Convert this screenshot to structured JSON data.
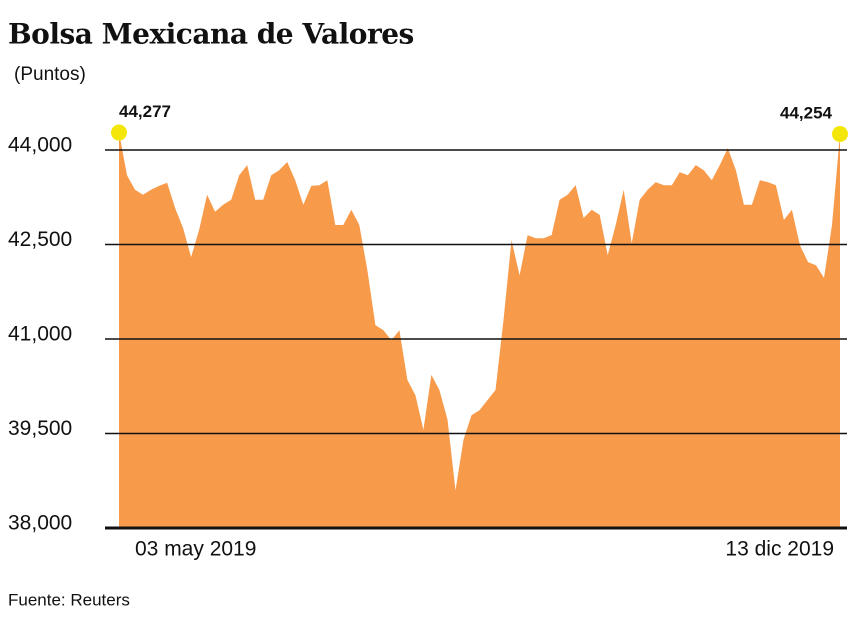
{
  "chart_data": {
    "type": "area",
    "title": "Bolsa Mexicana de Valores",
    "subtitle": "(Puntos)",
    "source": "Fuente: Reuters",
    "color": "#f79a4a",
    "marker_color": "#f5e60a",
    "grid": true,
    "categories": [
      "03 may 2019",
      null,
      null,
      null,
      null,
      null,
      null,
      null,
      null,
      null,
      null,
      null,
      null,
      null,
      null,
      null,
      null,
      null,
      null,
      null,
      null,
      null,
      null,
      null,
      null,
      null,
      null,
      null,
      null,
      null,
      null,
      null,
      null,
      null,
      null,
      null,
      null,
      null,
      null,
      null,
      null,
      null,
      null,
      null,
      null,
      null,
      null,
      null,
      null,
      null,
      null,
      null,
      null,
      null,
      null,
      null,
      null,
      null,
      null,
      null,
      null,
      null,
      null,
      null,
      null,
      null,
      null,
      null,
      null,
      null,
      null,
      null,
      null,
      null,
      null,
      null,
      null,
      null,
      null,
      null,
      null,
      null,
      null,
      null,
      null,
      null,
      null,
      null,
      null,
      null,
      "13 dic 2019"
    ],
    "values": [
      44277,
      43600,
      43370,
      43290,
      43370,
      43430,
      43480,
      43080,
      42760,
      42300,
      42730,
      43290,
      43020,
      43130,
      43210,
      43600,
      43760,
      43210,
      43210,
      43600,
      43680,
      43810,
      43520,
      43130,
      43430,
      43440,
      43520,
      42810,
      42810,
      43050,
      42810,
      42100,
      41220,
      41140,
      40980,
      41140,
      40350,
      40110,
      39560,
      40430,
      40190,
      39720,
      38600,
      39400,
      39790,
      39870,
      40030,
      40190,
      41300,
      42570,
      42010,
      42650,
      42600,
      42600,
      42650,
      43210,
      43290,
      43440,
      42920,
      43050,
      42970,
      42330,
      42810,
      43370,
      42520,
      43210,
      43370,
      43490,
      43440,
      43440,
      43650,
      43600,
      43760,
      43680,
      43520,
      43760,
      44030,
      43680,
      43130,
      43130,
      43520,
      43490,
      43440,
      42890,
      43050,
      42490,
      42220,
      42170,
      41970,
      42810,
      44254
    ],
    "value_labels": [
      "44,277",
      null,
      null,
      null,
      null,
      null,
      null,
      null,
      null,
      null,
      null,
      null,
      null,
      null,
      null,
      null,
      null,
      null,
      null,
      null,
      null,
      null,
      null,
      null,
      null,
      null,
      null,
      null,
      null,
      null,
      null,
      null,
      null,
      null,
      null,
      null,
      null,
      null,
      null,
      null,
      null,
      null,
      null,
      null,
      null,
      null,
      null,
      null,
      null,
      null,
      null,
      null,
      null,
      null,
      null,
      null,
      null,
      null,
      null,
      null,
      null,
      null,
      null,
      null,
      null,
      null,
      null,
      null,
      null,
      null,
      null,
      null,
      null,
      null,
      null,
      null,
      null,
      null,
      null,
      null,
      null,
      null,
      null,
      null,
      null,
      null,
      null,
      null,
      null,
      null,
      "44,254"
    ],
    "ylim": [
      38000,
      44500
    ],
    "yticks": [
      {
        "value": 38000,
        "label": "38,000"
      },
      {
        "value": 39500,
        "label": "39,500"
      },
      {
        "value": 41000,
        "label": "41,000"
      },
      {
        "value": 42500,
        "label": "42,500"
      },
      {
        "value": 44000,
        "label": "44,000"
      }
    ]
  }
}
